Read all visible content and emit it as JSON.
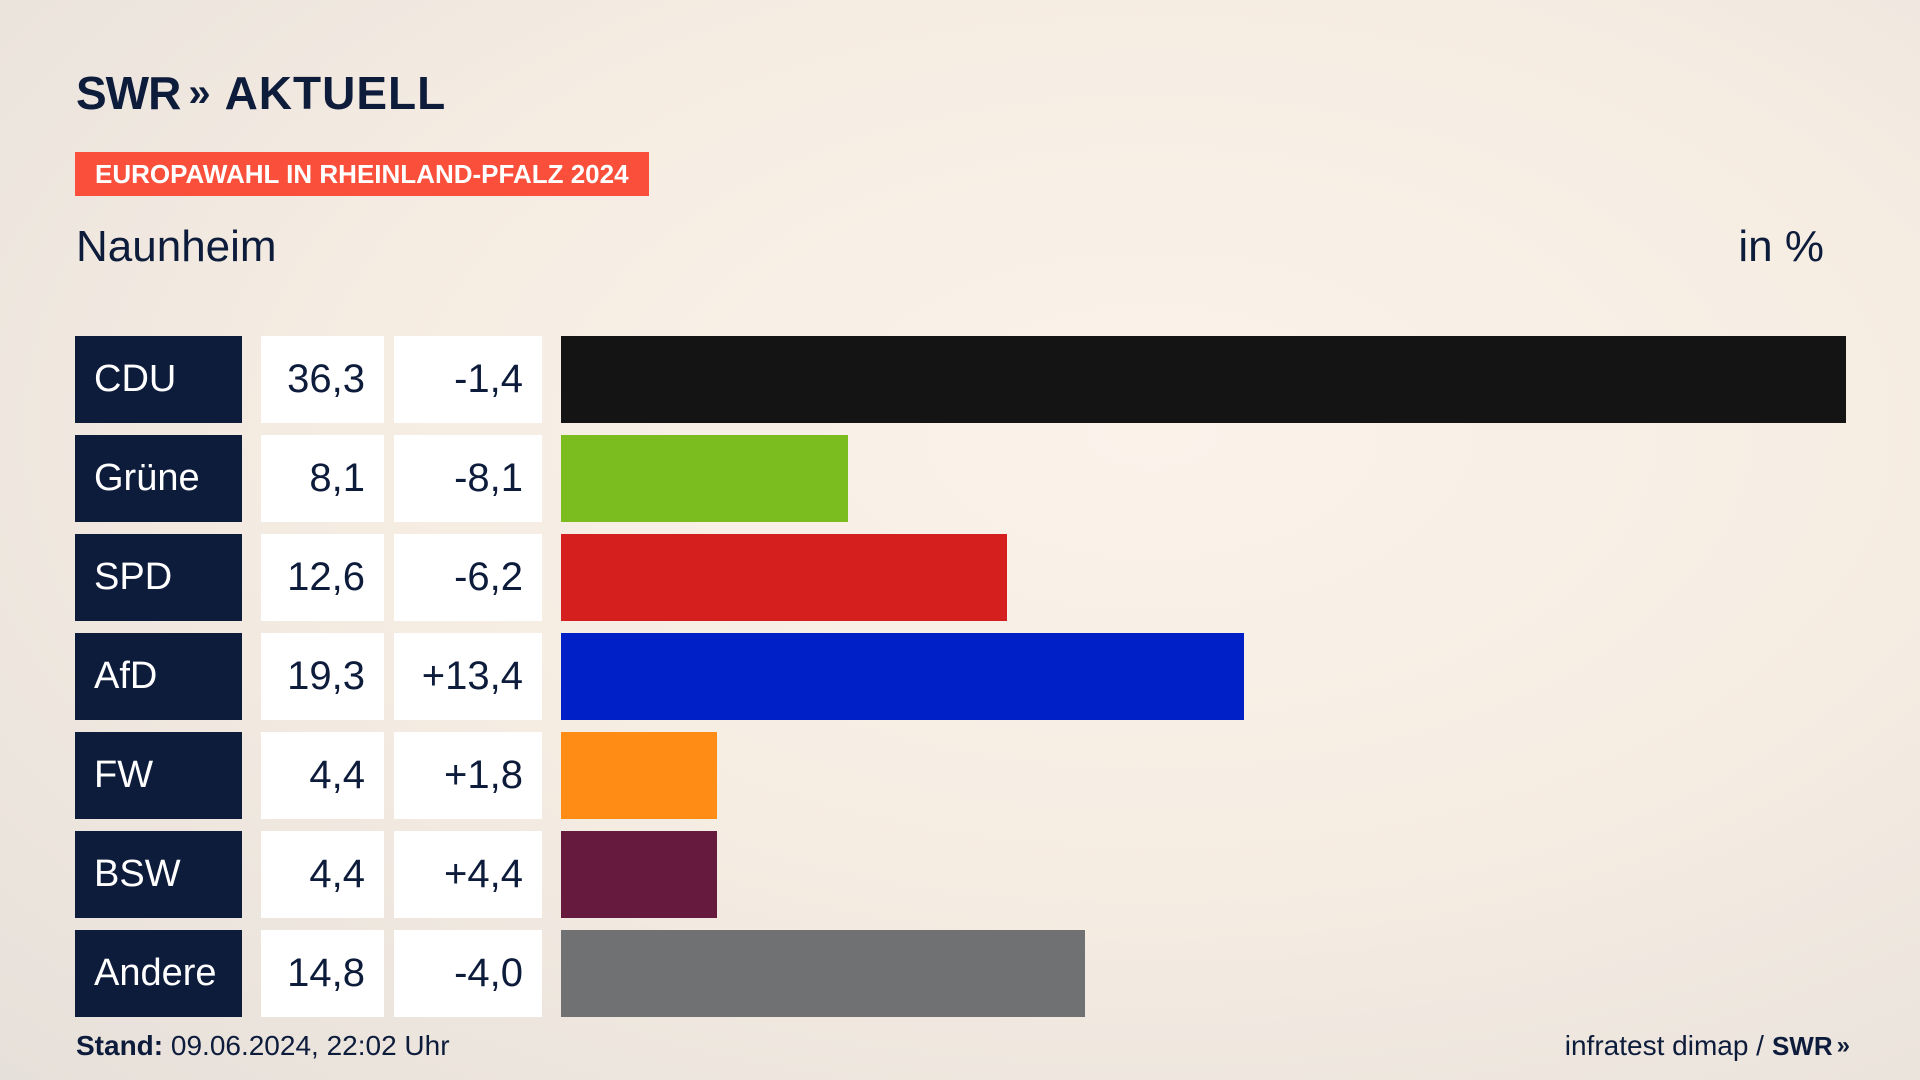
{
  "header": {
    "logo_swr": "SWR",
    "logo_arrows": "»",
    "logo_aktuell": "AKTUELL",
    "tag": "EUROPAWAHL IN RHEINLAND-PFALZ 2024",
    "place": "Naunheim",
    "unit": "in %"
  },
  "chart_data": {
    "type": "bar",
    "title": "Naunheim",
    "unit": "in %",
    "categories": [
      "CDU",
      "Grüne",
      "SPD",
      "AfD",
      "FW",
      "BSW",
      "Andere"
    ],
    "values": [
      36.3,
      8.1,
      12.6,
      19.3,
      4.4,
      4.4,
      14.8
    ],
    "value_labels": [
      "36,3",
      "8,1",
      "12,6",
      "19,3",
      "4,4",
      "4,4",
      "14,8"
    ],
    "changes": [
      -1.4,
      -8.1,
      -6.2,
      13.4,
      1.8,
      4.4,
      -4.0
    ],
    "change_labels": [
      "-1,4",
      "-8,1",
      "-6,2",
      "+13,4",
      "+1,8",
      "+4,4",
      "-4,0"
    ],
    "colors": [
      "#141414",
      "#7bbd1e",
      "#d51f1f",
      "#0020c7",
      "#ff8c14",
      "#661a3d",
      "#707173"
    ],
    "xlim": [
      0,
      36.3
    ]
  },
  "footer": {
    "stand_label": "Stand:",
    "stand_value": " 09.06.2024, 22:02 Uhr",
    "source": "infratest dimap /",
    "source_swr": "SWR",
    "source_arrows": "»"
  }
}
